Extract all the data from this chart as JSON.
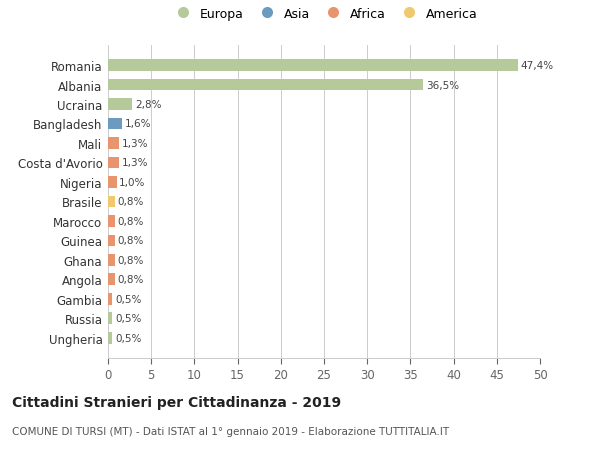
{
  "categories": [
    "Ungheria",
    "Russia",
    "Gambia",
    "Angola",
    "Ghana",
    "Guinea",
    "Marocco",
    "Brasile",
    "Nigeria",
    "Costa d'Avorio",
    "Mali",
    "Bangladesh",
    "Ucraina",
    "Albania",
    "Romania"
  ],
  "values": [
    0.5,
    0.5,
    0.5,
    0.8,
    0.8,
    0.8,
    0.8,
    0.8,
    1.0,
    1.3,
    1.3,
    1.6,
    2.8,
    36.5,
    47.4
  ],
  "colors": [
    "#b5c99a",
    "#b5c99a",
    "#e8956d",
    "#e8956d",
    "#e8956d",
    "#e8956d",
    "#e8956d",
    "#f0c96e",
    "#e8956d",
    "#e8956d",
    "#e8956d",
    "#6b9bbf",
    "#b5c99a",
    "#b5c99a",
    "#b5c99a"
  ],
  "labels": [
    "0,5%",
    "0,5%",
    "0,5%",
    "0,8%",
    "0,8%",
    "0,8%",
    "0,8%",
    "0,8%",
    "1,0%",
    "1,3%",
    "1,3%",
    "1,6%",
    "2,8%",
    "36,5%",
    "47,4%"
  ],
  "legend": {
    "Europa": "#b5c99a",
    "Asia": "#6b9bbf",
    "Africa": "#e8956d",
    "America": "#f0c96e"
  },
  "title": "Cittadini Stranieri per Cittadinanza - 2019",
  "subtitle": "COMUNE DI TURSI (MT) - Dati ISTAT al 1° gennaio 2019 - Elaborazione TUTTITALIA.IT",
  "xlim": [
    0,
    50
  ],
  "xticks": [
    0,
    5,
    10,
    15,
    20,
    25,
    30,
    35,
    40,
    45,
    50
  ],
  "background_color": "#ffffff",
  "grid_color": "#cccccc"
}
